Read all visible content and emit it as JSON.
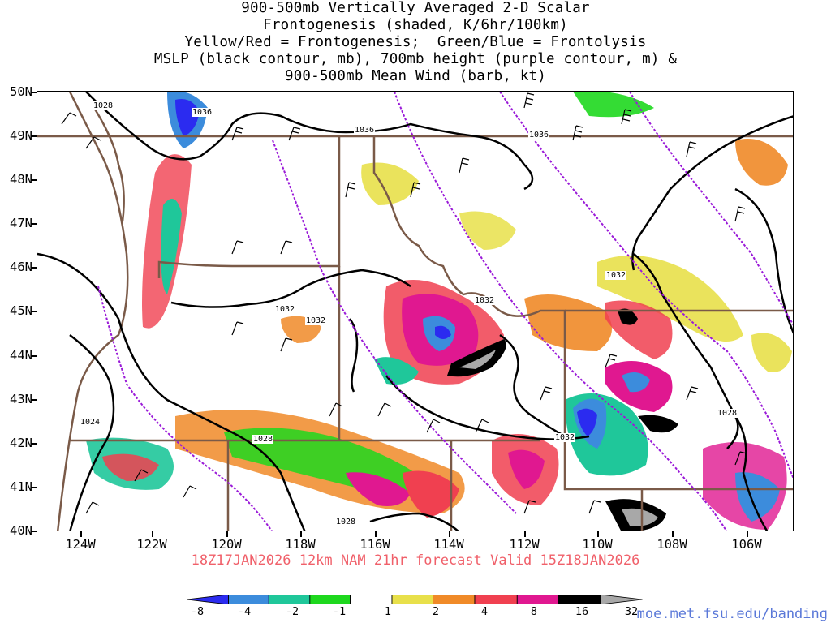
{
  "title": {
    "line1": "900-500mb Vertically Averaged 2-D Scalar",
    "line2": "Frontogenesis (shaded, K/6hr/100km)",
    "line3": "Yellow/Red = Frontogenesis;  Green/Blue = Frontolysis",
    "line4": "MSLP (black contour, mb), 700mb height (purple contour, m) &",
    "line5": "900-500mb Mean Wind (barb, kt)"
  },
  "axes": {
    "lat_labels": [
      "50N",
      "49N",
      "48N",
      "47N",
      "46N",
      "45N",
      "44N",
      "43N",
      "42N",
      "41N",
      "40N"
    ],
    "lon_labels": [
      "124W",
      "122W",
      "120W",
      "118W",
      "116W",
      "114W",
      "112W",
      "110W",
      "108W",
      "106W"
    ]
  },
  "contour_labels": [
    "1028",
    "1036",
    "1036",
    "1036",
    "1032",
    "1032",
    "1032",
    "1032",
    "1024",
    "1028",
    "1032",
    "1028",
    "1028"
  ],
  "run_info": "18Z17JAN2026 12km NAM 21hr forecast Valid 15Z18JAN2026",
  "colorbar": {
    "labels": [
      "-8",
      "-4",
      "-2",
      "-1",
      "1",
      "2",
      "4",
      "8",
      "16",
      "32"
    ],
    "colors": [
      "#2b2bf0",
      "#3c8cdc",
      "#1fc79a",
      "#1ed81e",
      "#ffffff",
      "#e8e04a",
      "#f08a28",
      "#f04050",
      "#e01890",
      "#000000",
      "#a8a8a8"
    ]
  },
  "credit": "moe.met.fsu.edu/banding",
  "colors": {
    "state_border": "#7a5a48",
    "pressure_contour": "#000000",
    "height_contour": "#9a1ad8",
    "run_info": "#f0606a",
    "credit": "#5a78d8"
  }
}
